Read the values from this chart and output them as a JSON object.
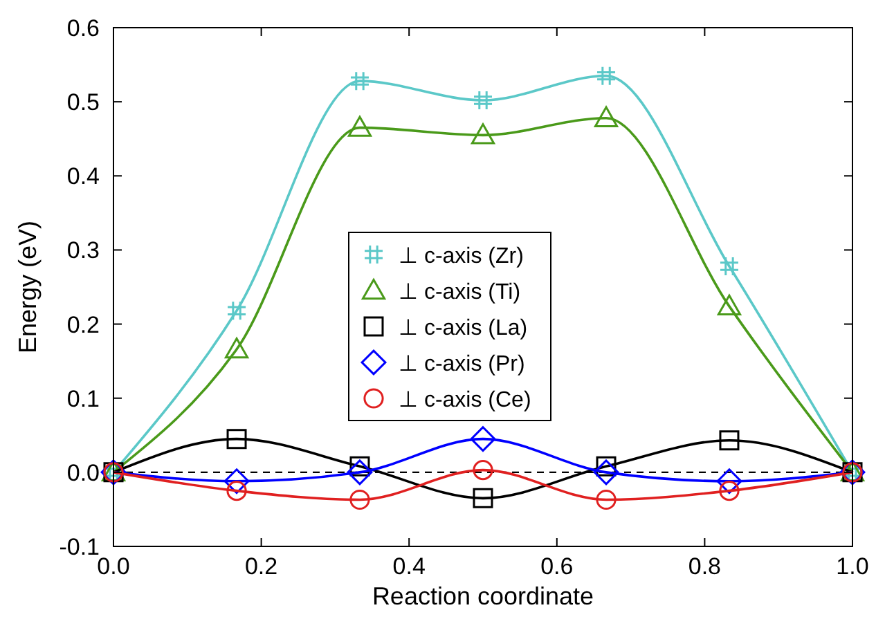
{
  "chart_data": {
    "type": "line",
    "xlabel": "Reaction coordinate",
    "ylabel": "Energy (eV)",
    "x": [
      0,
      0.1667,
      0.3333,
      0.5,
      0.6667,
      0.8333,
      1
    ],
    "xlim": [
      0,
      1
    ],
    "xticks": [
      {
        "value": 0,
        "label": "0.0"
      },
      {
        "value": 0.2,
        "label": "0.2"
      },
      {
        "value": 0.4,
        "label": "0.4"
      },
      {
        "value": 0.6,
        "label": "0.6"
      },
      {
        "value": 0.8,
        "label": "0.8"
      },
      {
        "value": 1,
        "label": "1.0"
      }
    ],
    "ylim": [
      -0.1,
      0.6
    ],
    "yticks": [
      {
        "value": -0.1,
        "label": "-0.1"
      },
      {
        "value": 0,
        "label": "0.0"
      },
      {
        "value": 0.1,
        "label": "0.1"
      },
      {
        "value": 0.2,
        "label": "0.2"
      },
      {
        "value": 0.3,
        "label": "0.3"
      },
      {
        "value": 0.4,
        "label": "0.4"
      },
      {
        "value": 0.5,
        "label": "0.5"
      },
      {
        "value": 0.6,
        "label": "0.6"
      }
    ],
    "legend": "center",
    "grid": false,
    "line_style": "solid",
    "ref_lines": [
      {
        "axis": "y",
        "value": 0,
        "line_style": "dashed",
        "color": "#000000"
      }
    ],
    "series": [
      {
        "name": "⊥ c-axis (Zr)",
        "color": "#5bc8c8",
        "marker": "cross",
        "values": [
          0,
          0.218,
          0.528,
          0.502,
          0.535,
          0.278,
          0
        ]
      },
      {
        "name": "⊥ c-axis (Ti)",
        "color": "#4a9a1a",
        "marker": "triangle",
        "values": [
          0,
          0.166,
          0.465,
          0.455,
          0.478,
          0.224,
          0
        ]
      },
      {
        "name": "⊥ c-axis (La)",
        "color": "#000000",
        "marker": "square",
        "values": [
          0,
          0.045,
          0.008,
          -0.035,
          0.008,
          0.043,
          0
        ]
      },
      {
        "name": "⊥ c-axis (Pr)",
        "color": "#0000ff",
        "marker": "diamond",
        "values": [
          0,
          -0.012,
          0,
          0.045,
          0,
          -0.012,
          0
        ]
      },
      {
        "name": "⊥ c-axis (Ce)",
        "color": "#e02020",
        "marker": "circle",
        "values": [
          0,
          -0.025,
          -0.037,
          0.003,
          -0.037,
          -0.025,
          0
        ]
      }
    ]
  }
}
